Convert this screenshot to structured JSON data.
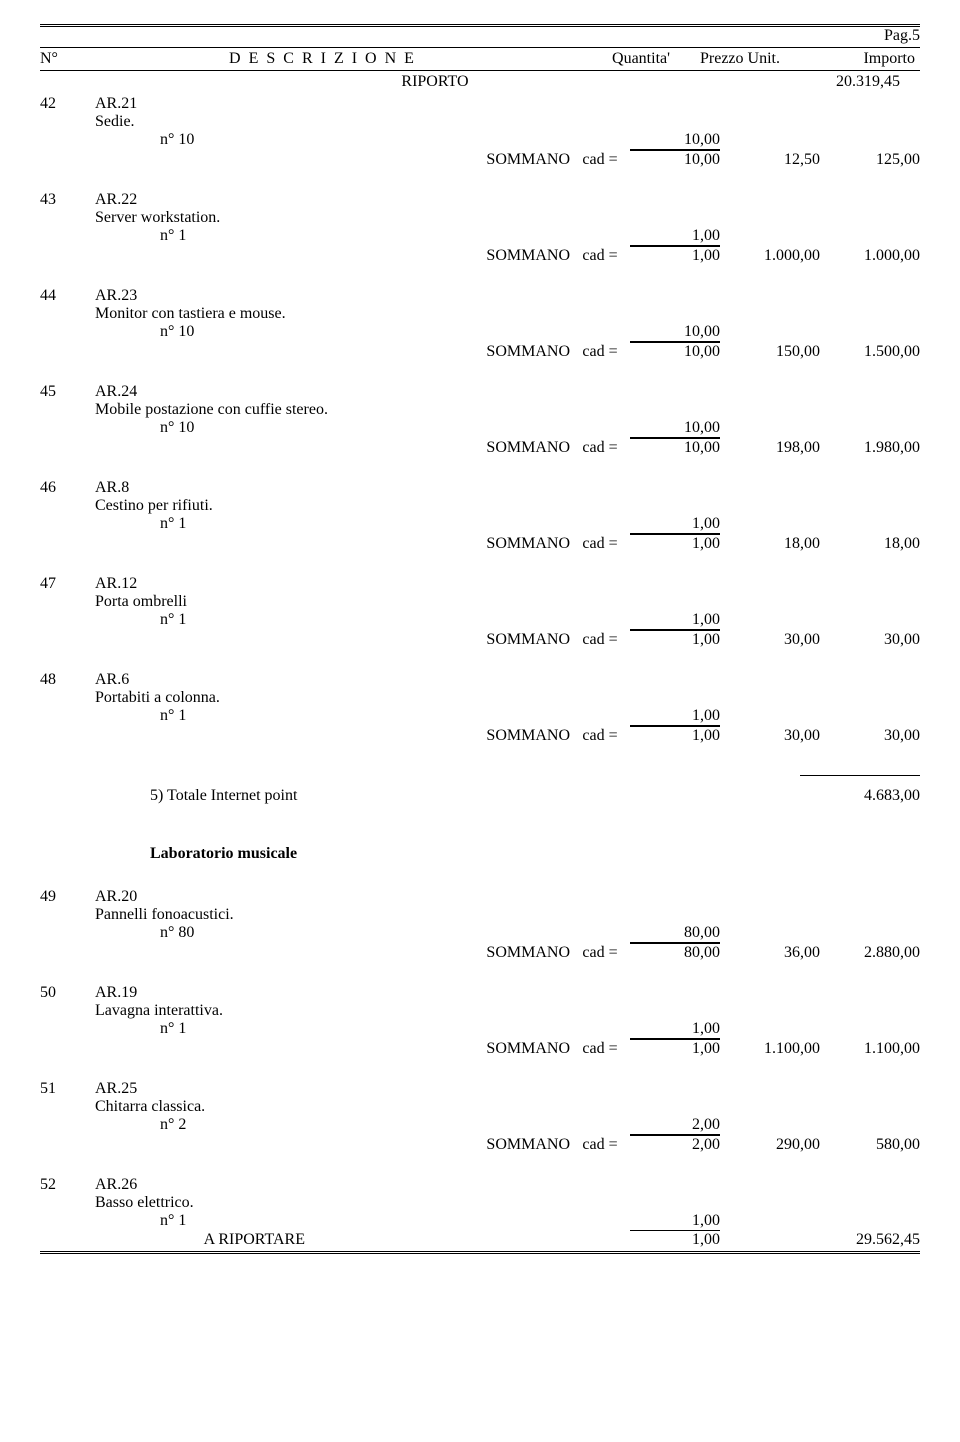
{
  "page_label": "Pag.5",
  "headers": {
    "n": "N°",
    "desc": "D E S C R I Z I O N E",
    "qty": "Quantita'",
    "price": "Prezzo Unit.",
    "imp": "Importo"
  },
  "riporto_label": "RIPORTO",
  "riporto_value": "20.319,45",
  "sommano": "SOMMANO",
  "unit_eq": "cad =",
  "items": [
    {
      "num": "42",
      "code": "AR.21",
      "desc": "Sedie.",
      "qline": "n° 10",
      "qval": "10,00",
      "sum": "10,00",
      "price": "12,50",
      "imp": "125,00"
    },
    {
      "num": "43",
      "code": "AR.22",
      "desc": "Server workstation.",
      "qline": "n° 1",
      "qval": "1,00",
      "sum": "1,00",
      "price": "1.000,00",
      "imp": "1.000,00"
    },
    {
      "num": "44",
      "code": "AR.23",
      "desc": "Monitor con tastiera e mouse.",
      "qline": "n° 10",
      "qval": "10,00",
      "sum": "10,00",
      "price": "150,00",
      "imp": "1.500,00"
    },
    {
      "num": "45",
      "code": "AR.24",
      "desc": "Mobile postazione con cuffie stereo.",
      "qline": "n° 10",
      "qval": "10,00",
      "sum": "10,00",
      "price": "198,00",
      "imp": "1.980,00"
    },
    {
      "num": "46",
      "code": "AR.8",
      "desc": "Cestino per rifiuti.",
      "qline": "n° 1",
      "qval": "1,00",
      "sum": "1,00",
      "price": "18,00",
      "imp": "18,00"
    },
    {
      "num": "47",
      "code": "AR.12",
      "desc": "Porta ombrelli",
      "qline": "n° 1",
      "qval": "1,00",
      "sum": "1,00",
      "price": "30,00",
      "imp": "30,00"
    },
    {
      "num": "48",
      "code": "AR.6",
      "desc": "Portabiti a colonna.",
      "qline": "n° 1",
      "qval": "1,00",
      "sum": "1,00",
      "price": "30,00",
      "imp": "30,00"
    }
  ],
  "section_total_label": "5) Totale  Internet point",
  "section_total_value": "4.683,00",
  "section2_title": "Laboratorio musicale",
  "items2": [
    {
      "num": "49",
      "code": "AR.20",
      "desc": "Pannelli fonoacustici.",
      "qline": "n° 80",
      "qval": "80,00",
      "sum": "80,00",
      "price": "36,00",
      "imp": "2.880,00"
    },
    {
      "num": "50",
      "code": "AR.19",
      "desc": "Lavagna interattiva.",
      "qline": "n° 1",
      "qval": "1,00",
      "sum": "1,00",
      "price": "1.100,00",
      "imp": "1.100,00"
    },
    {
      "num": "51",
      "code": "AR.25",
      "desc": "Chitarra classica.",
      "qline": "n° 2",
      "qval": "2,00",
      "sum": "2,00",
      "price": "290,00",
      "imp": "580,00"
    }
  ],
  "last_item": {
    "num": "52",
    "code": "AR.26",
    "desc": "Basso elettrico.",
    "qline": "n° 1",
    "qval": "1,00"
  },
  "a_riportare_label": "A RIPORTARE",
  "a_riportare_qty": "1,00",
  "a_riportare_imp": "29.562,45"
}
